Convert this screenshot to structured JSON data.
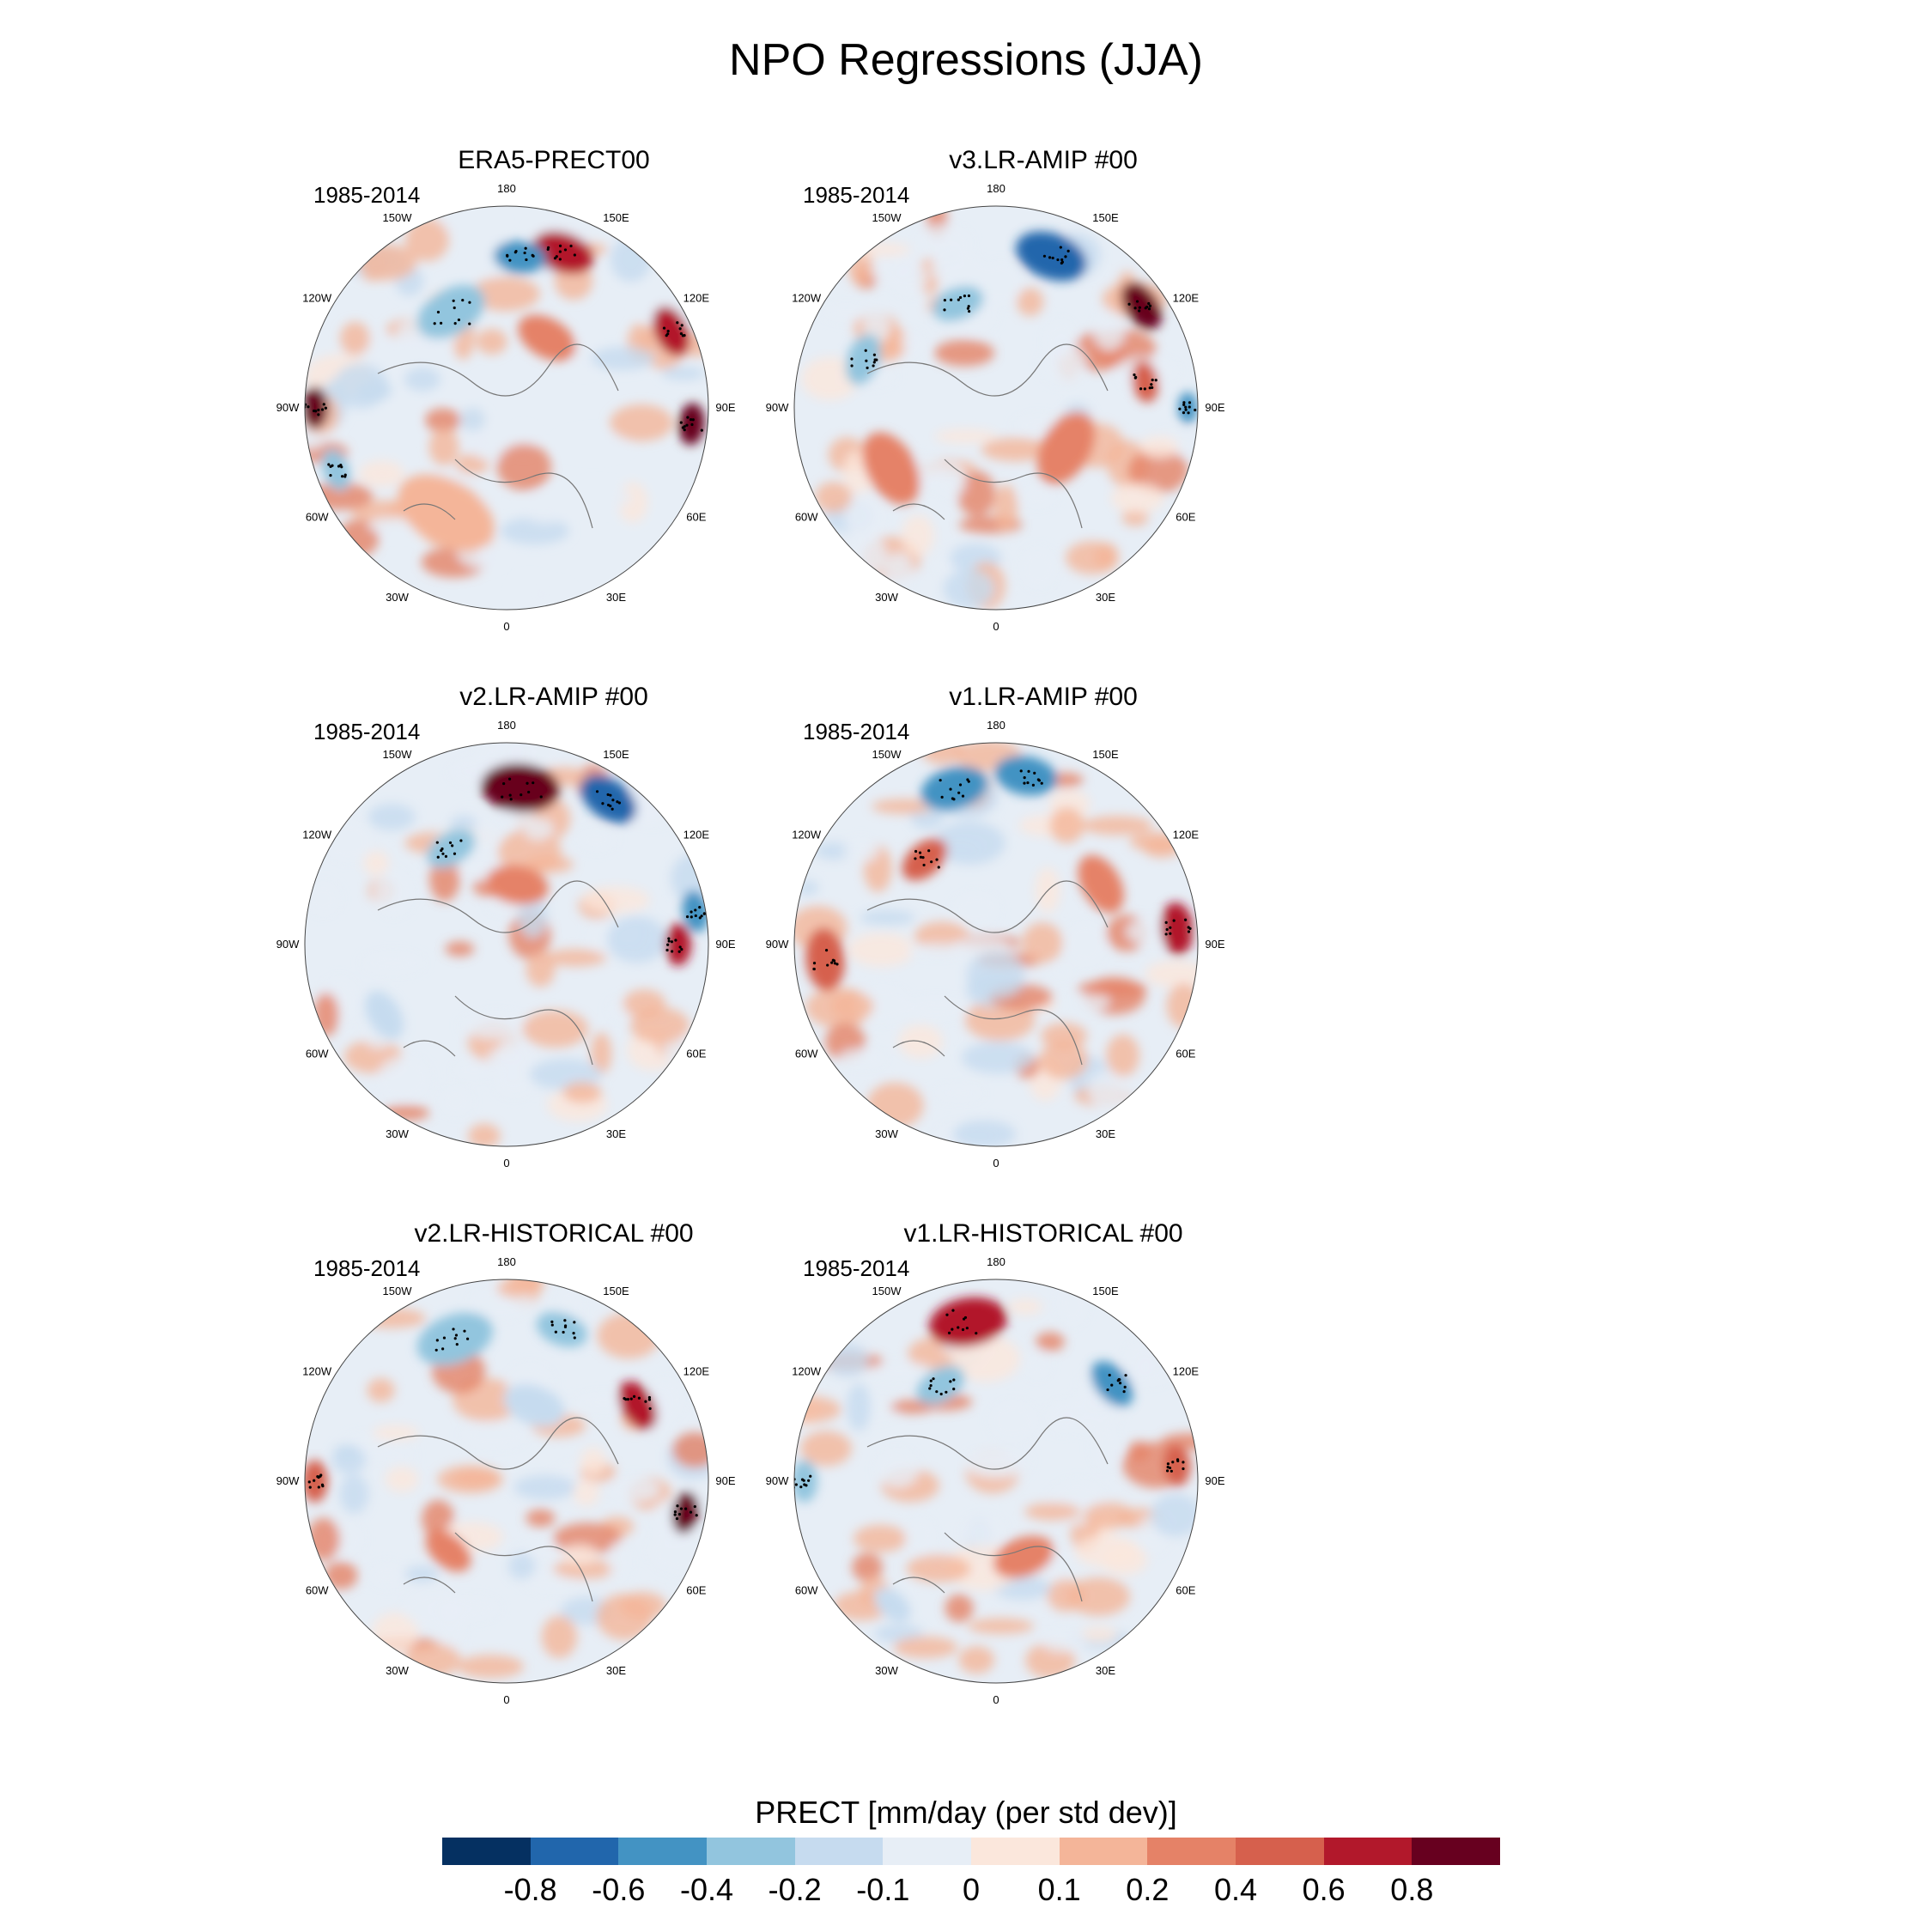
{
  "figure": {
    "title": "NPO Regressions (JJA)"
  },
  "longitude_labels": [
    "180",
    "150E",
    "120E",
    "90E",
    "60E",
    "30E",
    "0",
    "30W",
    "60W",
    "90W",
    "120W",
    "150W"
  ],
  "panels": [
    {
      "title": "ERA5-PRECT00",
      "period": "1985-2014",
      "features": [
        {
          "lon": 160,
          "r": 0.82,
          "value": 0.6,
          "size": 0.12
        },
        {
          "lon": 175,
          "r": 0.75,
          "value": -0.6,
          "size": 0.1
        },
        {
          "lon": 115,
          "r": 0.9,
          "value": 0.6,
          "size": 0.1
        },
        {
          "lon": 85,
          "r": 0.92,
          "value": 0.8,
          "size": 0.08
        },
        {
          "lon": -150,
          "r": 0.55,
          "value": -0.4,
          "size": 0.14
        },
        {
          "lon": -90,
          "r": 0.95,
          "value": 0.8,
          "size": 0.08
        },
        {
          "lon": -70,
          "r": 0.9,
          "value": -0.4,
          "size": 0.08
        },
        {
          "lon": 150,
          "r": 0.4,
          "value": 0.2,
          "size": 0.12
        },
        {
          "lon": -30,
          "r": 0.6,
          "value": 0.1,
          "size": 0.2
        }
      ]
    },
    {
      "title": "v3.LR-AMIP  #00",
      "period": "1985-2014",
      "features": [
        {
          "lon": 160,
          "r": 0.8,
          "value": -0.8,
          "size": 0.14
        },
        {
          "lon": 125,
          "r": 0.88,
          "value": 0.8,
          "size": 0.1
        },
        {
          "lon": -160,
          "r": 0.55,
          "value": -0.4,
          "size": 0.1
        },
        {
          "lon": 90,
          "r": 0.95,
          "value": -0.6,
          "size": 0.06
        },
        {
          "lon": -110,
          "r": 0.7,
          "value": -0.4,
          "size": 0.1
        },
        {
          "lon": 60,
          "r": 0.4,
          "value": 0.2,
          "size": 0.15
        },
        {
          "lon": -60,
          "r": 0.6,
          "value": 0.2,
          "size": 0.15
        },
        {
          "lon": 100,
          "r": 0.75,
          "value": 0.4,
          "size": 0.08
        }
      ]
    },
    {
      "title": "v2.LR-AMIP  #00",
      "period": "1985-2014",
      "features": [
        {
          "lon": 175,
          "r": 0.78,
          "value": 0.8,
          "size": 0.15
        },
        {
          "lon": 145,
          "r": 0.88,
          "value": -0.8,
          "size": 0.12
        },
        {
          "lon": 100,
          "r": 0.95,
          "value": -0.6,
          "size": 0.08
        },
        {
          "lon": 90,
          "r": 0.85,
          "value": 0.6,
          "size": 0.08
        },
        {
          "lon": -150,
          "r": 0.55,
          "value": -0.4,
          "size": 0.1
        },
        {
          "lon": 170,
          "r": 0.3,
          "value": 0.2,
          "size": 0.12
        },
        {
          "lon": -60,
          "r": 0.7,
          "value": -0.2,
          "size": 0.1
        }
      ]
    },
    {
      "title": "v1.LR-AMIP  #00",
      "period": "1985-2014",
      "features": [
        {
          "lon": -165,
          "r": 0.8,
          "value": -0.6,
          "size": 0.13
        },
        {
          "lon": 170,
          "r": 0.85,
          "value": -0.6,
          "size": 0.12
        },
        {
          "lon": 95,
          "r": 0.9,
          "value": 0.6,
          "size": 0.1
        },
        {
          "lon": -85,
          "r": 0.85,
          "value": 0.4,
          "size": 0.12
        },
        {
          "lon": -140,
          "r": 0.55,
          "value": 0.4,
          "size": 0.1
        },
        {
          "lon": 120,
          "r": 0.6,
          "value": 0.2,
          "size": 0.12
        }
      ]
    },
    {
      "title": "v2.LR-HISTORICAL  #00",
      "period": "1985-2014",
      "features": [
        {
          "lon": -160,
          "r": 0.75,
          "value": -0.4,
          "size": 0.15
        },
        {
          "lon": 160,
          "r": 0.8,
          "value": -0.4,
          "size": 0.1
        },
        {
          "lon": 120,
          "r": 0.75,
          "value": 0.6,
          "size": 0.1
        },
        {
          "lon": 80,
          "r": 0.9,
          "value": 0.8,
          "size": 0.08
        },
        {
          "lon": -90,
          "r": 0.95,
          "value": 0.4,
          "size": 0.08
        },
        {
          "lon": 160,
          "r": 0.4,
          "value": -0.2,
          "size": 0.12
        },
        {
          "lon": -40,
          "r": 0.45,
          "value": 0.2,
          "size": 0.1
        }
      ]
    },
    {
      "title": "v1.LR-HISTORICAL  #00",
      "period": "1985-2014",
      "features": [
        {
          "lon": -170,
          "r": 0.8,
          "value": 0.6,
          "size": 0.15
        },
        {
          "lon": -150,
          "r": 0.55,
          "value": -0.4,
          "size": 0.1
        },
        {
          "lon": 130,
          "r": 0.75,
          "value": -0.6,
          "size": 0.1
        },
        {
          "lon": 95,
          "r": 0.9,
          "value": 0.4,
          "size": 0.08
        },
        {
          "lon": -90,
          "r": 0.95,
          "value": -0.4,
          "size": 0.08
        },
        {
          "lon": 20,
          "r": 0.4,
          "value": 0.2,
          "size": 0.12
        },
        {
          "lon": -40,
          "r": 0.8,
          "value": -0.2,
          "size": 0.08
        }
      ]
    }
  ],
  "colorbar": {
    "title": "PRECT [mm/day (per std dev)]",
    "levels": [
      "-0.8",
      "-0.6",
      "-0.4",
      "-0.2",
      "-0.1",
      "0",
      "0.1",
      "0.2",
      "0.4",
      "0.6",
      "0.8"
    ],
    "colors": [
      "#053061",
      "#2166ac",
      "#4393c3",
      "#92c5de",
      "#c6dbef",
      "#e7eef6",
      "#fbe7dc",
      "#f4b599",
      "#e58267",
      "#d6604d",
      "#b2182b",
      "#67001f"
    ]
  }
}
